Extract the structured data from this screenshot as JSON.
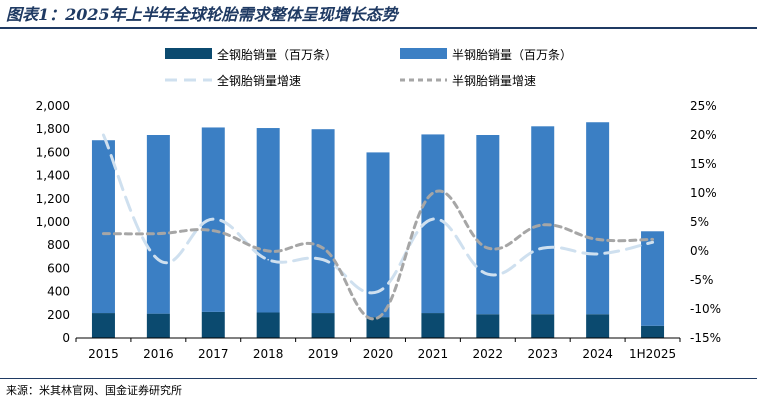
{
  "title": "图表1：2025年上半年全球轮胎需求整体呈现增长态势",
  "source": "来源：米其林官网、国金证券研究所",
  "chart_data": {
    "type": "bar",
    "stacked": true,
    "categories": [
      "2015",
      "2016",
      "2017",
      "2018",
      "2019",
      "2020",
      "2021",
      "2022",
      "2023",
      "2024",
      "1H2025"
    ],
    "series": [
      {
        "name": "全钢胎销量（百万条）",
        "kind": "bar",
        "axis": "left",
        "color": "#0b4a6f",
        "values": [
          215,
          210,
          225,
          220,
          215,
          180,
          215,
          205,
          205,
          205,
          105
        ]
      },
      {
        "name": "半钢胎销量（百万条）",
        "kind": "bar",
        "axis": "left",
        "color": "#3b7fc4",
        "values": [
          1490,
          1540,
          1590,
          1590,
          1585,
          1420,
          1540,
          1545,
          1620,
          1655,
          815
        ]
      },
      {
        "name": "全钢胎销量增速",
        "kind": "line",
        "axis": "right",
        "color": "#cfe0ef",
        "dash": "long-dash",
        "values": [
          20,
          -1.5,
          5.5,
          -1.5,
          -1.5,
          -7,
          5.5,
          -4,
          0.5,
          -0.5,
          1.5
        ]
      },
      {
        "name": "半钢胎销量增速",
        "kind": "line",
        "axis": "right",
        "color": "#a6a6a6",
        "dash": "short-dash",
        "values": [
          3,
          3,
          3.5,
          0,
          0.5,
          -11.5,
          10,
          0.5,
          4.5,
          2,
          2
        ]
      }
    ],
    "y_left": {
      "min": 0,
      "max": 2000,
      "ticks": [
        "0",
        "200",
        "400",
        "600",
        "800",
        "1,000",
        "1,200",
        "1,400",
        "1,600",
        "1,800",
        "2,000"
      ]
    },
    "y_right": {
      "min": -15,
      "max": 25,
      "ticks": [
        "-15%",
        "-10%",
        "-5%",
        "0%",
        "5%",
        "10%",
        "15%",
        "20%",
        "25%"
      ]
    },
    "legend_position": "top",
    "grid": false
  }
}
